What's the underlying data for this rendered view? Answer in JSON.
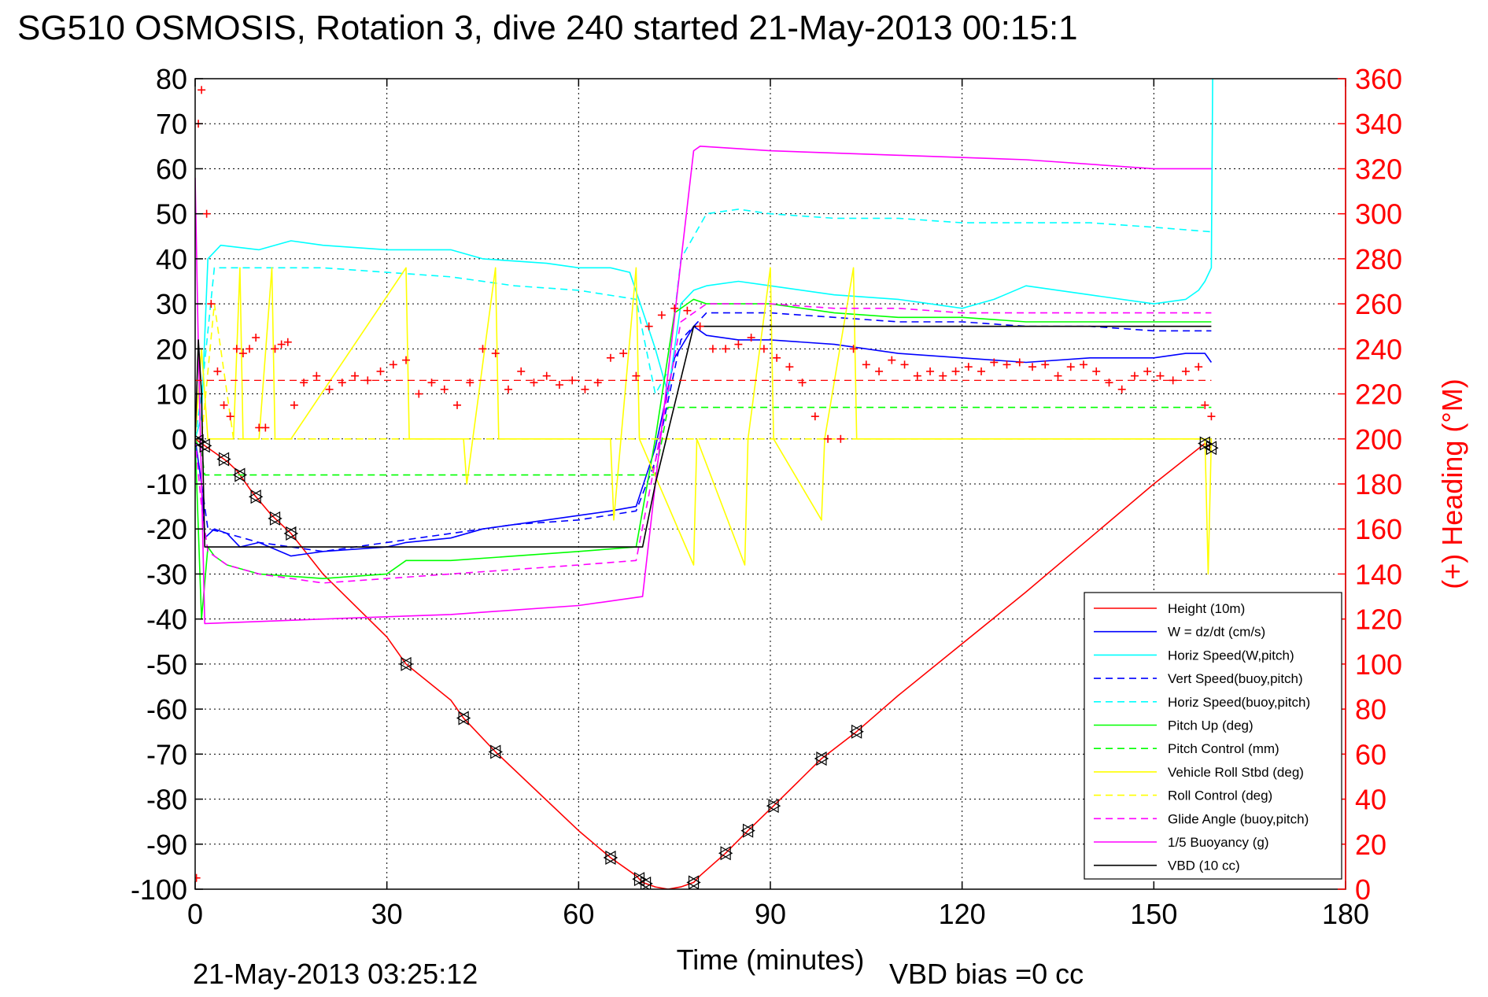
{
  "chart_data": {
    "type": "line",
    "title": "SG510 OSMOSIS, Rotation 3, dive 240 started 21-May-2013 00:15:1",
    "xlabel": "Time (minutes)",
    "ylabel_right": "(+) Heading (°M)",
    "footer_left": "21-May-2013 03:25:12",
    "footer_right": "VBD bias =0 cc",
    "xlim": [
      0,
      180
    ],
    "ylim": [
      -100,
      80
    ],
    "ylim_right": [
      0,
      360
    ],
    "x_ticks": [
      "0",
      "30",
      "60",
      "90",
      "120",
      "150",
      "180"
    ],
    "y_ticks": [
      "80",
      "70",
      "60",
      "50",
      "40",
      "30",
      "20",
      "10",
      "0",
      "-10",
      "-20",
      "-30",
      "-40",
      "-50",
      "-60",
      "-70",
      "-80",
      "-90",
      "-100"
    ],
    "y2_ticks": [
      "360",
      "340",
      "320",
      "300",
      "280",
      "260",
      "240",
      "220",
      "200",
      "180",
      "160",
      "140",
      "120",
      "100",
      "80",
      "60",
      "40",
      "20",
      "0"
    ],
    "grid": true,
    "legend_position": "bottom-right",
    "series": [
      {
        "name": "Height (10m)",
        "color": "#ff0000",
        "dash": "solid",
        "x": [
          0,
          1,
          3,
          5,
          6.5,
          9,
          12,
          15,
          20,
          30,
          33,
          40,
          42,
          47,
          60,
          65,
          69,
          70,
          72,
          74,
          76,
          78,
          79,
          83,
          86.5,
          90.5,
          98,
          103.5,
          110,
          130,
          150,
          158,
          159
        ],
        "y": [
          0,
          -1,
          -3,
          -5,
          -7,
          -12,
          -17,
          -21,
          -30,
          -44,
          -50,
          -58,
          -62,
          -69.5,
          -87,
          -93,
          -97,
          -98.5,
          -99.5,
          -100,
          -99.5,
          -98.5,
          -97,
          -92,
          -87,
          -81.5,
          -71,
          -65,
          -57,
          -34,
          -10,
          -1,
          -2
        ]
      },
      {
        "name": "W = dz/dt (cm/s)",
        "color": "#0000ff",
        "dash": "solid",
        "x": [
          0,
          1,
          1.5,
          3,
          5,
          7,
          10,
          15,
          20,
          30,
          33,
          40,
          45,
          55,
          60,
          65,
          69,
          72,
          75,
          78,
          80,
          85,
          90,
          100,
          105,
          110,
          120,
          130,
          140,
          150,
          155,
          158,
          159
        ],
        "y": [
          0,
          -10,
          -22,
          -20,
          -21,
          -24,
          -23,
          -26,
          -25,
          -24,
          -23,
          -22,
          -20,
          -18,
          -17,
          -16,
          -15,
          -2,
          18,
          25,
          23,
          22,
          22,
          21,
          20,
          19,
          18,
          17,
          18,
          18,
          19,
          19,
          17
        ]
      },
      {
        "name": "Horiz Speed(W,pitch)",
        "color": "#00ffff",
        "dash": "solid",
        "x": [
          0,
          1,
          2,
          4,
          10,
          15,
          20,
          30,
          40,
          45,
          55,
          60,
          65,
          68,
          72,
          74,
          76,
          78,
          80,
          85,
          90,
          100,
          110,
          115,
          120,
          125,
          130,
          140,
          150,
          155,
          157,
          158,
          159,
          159.2
        ],
        "y": [
          0,
          5,
          40,
          43,
          42,
          44,
          43,
          42,
          42,
          40,
          39,
          38,
          38,
          37,
          20,
          10,
          30,
          33,
          34,
          35,
          34,
          32,
          31,
          30,
          29,
          31,
          34,
          32,
          30,
          31,
          33,
          35,
          38,
          80
        ]
      },
      {
        "name": "Vert Speed(buoy,pitch)",
        "color": "#0000ff",
        "dash": "dashed",
        "x": [
          0,
          1,
          2,
          5,
          10,
          20,
          30,
          40,
          50,
          60,
          69,
          72,
          76,
          80,
          90,
          100,
          110,
          120,
          130,
          140,
          150,
          159
        ],
        "y": [
          0,
          -10,
          -20,
          -21,
          -23,
          -25,
          -23,
          -21,
          -19,
          -18,
          -16,
          -5,
          22,
          28,
          28,
          27,
          26,
          26,
          25,
          25,
          24,
          24
        ]
      },
      {
        "name": "Horiz Speed(buoy,pitch)",
        "color": "#00ffff",
        "dash": "dashed",
        "x": [
          0,
          1,
          3,
          10,
          20,
          30,
          40,
          50,
          60,
          69,
          72,
          74,
          76,
          80,
          85,
          90,
          100,
          110,
          120,
          130,
          140,
          150,
          159
        ],
        "y": [
          0,
          10,
          38,
          38,
          38,
          37,
          36,
          34,
          33,
          31,
          10,
          15,
          40,
          50,
          51,
          50,
          49,
          49,
          48,
          48,
          48,
          47,
          46
        ]
      },
      {
        "name": "Pitch Up (deg)",
        "color": "#00ff00",
        "dash": "solid",
        "x": [
          0,
          1,
          2,
          3,
          5,
          10,
          20,
          30,
          33,
          40,
          50,
          60,
          69,
          72,
          75,
          78,
          80,
          90,
          100,
          110,
          120,
          130,
          140,
          150,
          159
        ],
        "y": [
          0,
          -40,
          -24,
          -26,
          -28,
          -30,
          -31,
          -30,
          -27,
          -27,
          -26,
          -25,
          -24,
          0,
          28,
          31,
          30,
          30,
          28,
          27,
          27,
          26,
          26,
          26,
          26
        ]
      },
      {
        "name": "Pitch Control (mm)",
        "color": "#00ff00",
        "dash": "dashed",
        "x": [
          0,
          1,
          1.5,
          70,
          72,
          74,
          159
        ],
        "y": [
          0,
          -3,
          -8,
          -8,
          -8,
          7,
          7
        ]
      },
      {
        "name": "Vehicle Roll Stbd (deg)",
        "color": "#ffff00",
        "dash": "solid",
        "x": [
          0,
          1,
          2,
          6,
          7,
          7.5,
          10,
          12,
          12.5,
          15,
          33,
          33.5,
          42,
          42.5,
          47,
          47.5,
          65,
          65.5,
          69,
          69.5,
          78,
          78.5,
          86,
          86.5,
          90,
          90.5,
          98,
          98.5,
          103,
          103.5,
          158,
          158.5,
          159
        ],
        "y": [
          0,
          20,
          0,
          0,
          38,
          0,
          0,
          38,
          0,
          0,
          38,
          0,
          0,
          -10,
          38,
          0,
          0,
          -18,
          38,
          0,
          -28,
          0,
          -28,
          0,
          38,
          0,
          -18,
          0,
          38,
          0,
          0,
          -30,
          0
        ]
      },
      {
        "name": "Roll Control (deg)",
        "color": "#ffff00",
        "dash": "dashed",
        "x": [
          0,
          1,
          3,
          6,
          10,
          15,
          30,
          60,
          90,
          120,
          150,
          159
        ],
        "y": [
          0,
          0,
          30,
          0,
          0,
          0,
          0,
          0,
          0,
          0,
          0,
          0
        ]
      },
      {
        "name": "Glide Angle (buoy,pitch)",
        "color": "#ff00ff",
        "dash": "dashed",
        "x": [
          0,
          1,
          2,
          5,
          10,
          20,
          30,
          40,
          50,
          60,
          69,
          72,
          76,
          80,
          90,
          100,
          110,
          120,
          130,
          140,
          150,
          159
        ],
        "y": [
          0,
          -15,
          -25,
          -28,
          -30,
          -32,
          -31,
          -30,
          -29,
          -28,
          -27,
          -5,
          26,
          30,
          30,
          29,
          29,
          28,
          28,
          28,
          28,
          28
        ]
      },
      {
        "name": "1/5 Buoyancy (g)",
        "color": "#ff00ff",
        "dash": "solid",
        "x": [
          0,
          0.5,
          1,
          1.5,
          20,
          40,
          60,
          70,
          72,
          78,
          79,
          90,
          110,
          130,
          150,
          159
        ],
        "y": [
          58,
          20,
          -10,
          -41,
          -40,
          -39,
          -37,
          -35,
          -10,
          64,
          65,
          64,
          63,
          62,
          60,
          60
        ]
      },
      {
        "name": "VBD (10 cc)",
        "color": "#000000",
        "dash": "solid",
        "x": [
          0,
          0.5,
          1,
          1.5,
          60,
          70,
          72,
          78,
          79,
          90,
          120,
          150,
          159
        ],
        "y": [
          0,
          22,
          10,
          -24,
          -24,
          -24,
          -10,
          25,
          25,
          25,
          25,
          25,
          25
        ]
      }
    ],
    "heading_series": {
      "name": "(+) Heading (°M)",
      "color": "#ff0000",
      "marker": "+",
      "mean_heading": 226,
      "x": [
        0.2,
        0.5,
        1,
        1.8,
        2.5,
        3.5,
        4.5,
        5.5,
        6.5,
        7.5,
        8.5,
        9.5,
        10,
        11,
        12.5,
        13.5,
        14.5,
        15.5,
        17,
        19,
        21,
        23,
        25,
        27,
        29,
        31,
        33,
        35,
        37,
        39,
        41,
        43,
        45,
        47,
        49,
        51,
        53,
        55,
        57,
        59,
        61,
        63,
        65,
        67,
        69,
        71,
        73,
        75,
        77,
        79,
        81,
        83,
        85,
        87,
        89,
        91,
        93,
        95,
        97,
        99,
        101,
        103,
        105,
        107,
        109,
        111,
        113,
        115,
        117,
        119,
        121,
        123,
        125,
        127,
        129,
        131,
        133,
        135,
        137,
        139,
        141,
        143,
        145,
        147,
        149,
        151,
        153,
        155,
        157,
        158,
        159
      ],
      "y": [
        5,
        340,
        355,
        300,
        260,
        230,
        215,
        210,
        240,
        238,
        240,
        245,
        205,
        205,
        240,
        242,
        243,
        215,
        225,
        228,
        222,
        225,
        228,
        226,
        230,
        233,
        235,
        220,
        225,
        222,
        215,
        225,
        240,
        238,
        222,
        230,
        225,
        228,
        224,
        226,
        222,
        225,
        236,
        238,
        228,
        250,
        255,
        258,
        257,
        250,
        240,
        240,
        242,
        245,
        240,
        236,
        232,
        225,
        210,
        200,
        200,
        240,
        233,
        230,
        235,
        233,
        228,
        230,
        228,
        230,
        232,
        230,
        234,
        233,
        234,
        232,
        233,
        228,
        232,
        233,
        230,
        225,
        222,
        228,
        230,
        228,
        226,
        230,
        232,
        215,
        210
      ]
    },
    "time_markers_x": [
      0.5,
      1.5,
      4.5,
      7,
      9.5,
      12.5,
      15,
      33,
      42,
      47,
      65,
      69.5,
      70.5,
      78,
      83,
      86.5,
      90.5,
      98,
      103.5,
      158,
      159
    ]
  },
  "legend": {
    "entries": [
      {
        "label": "Height (10m)",
        "color": "#ff0000",
        "dash": "solid"
      },
      {
        "label": "W = dz/dt (cm/s)",
        "color": "#0000ff",
        "dash": "solid"
      },
      {
        "label": "Horiz Speed(W,pitch)",
        "color": "#00ffff",
        "dash": "solid"
      },
      {
        "label": "Vert Speed(buoy,pitch)",
        "color": "#0000ff",
        "dash": "dashed"
      },
      {
        "label": "Horiz Speed(buoy,pitch)",
        "color": "#00ffff",
        "dash": "dashed"
      },
      {
        "label": "Pitch Up (deg)",
        "color": "#00ff00",
        "dash": "solid"
      },
      {
        "label": "Pitch Control (mm)",
        "color": "#00ff00",
        "dash": "dashed"
      },
      {
        "label": "Vehicle Roll Stbd (deg)",
        "color": "#ffff00",
        "dash": "solid"
      },
      {
        "label": "Roll Control (deg)",
        "color": "#ffff00",
        "dash": "dashed"
      },
      {
        "label": "Glide Angle (buoy,pitch)",
        "color": "#ff00ff",
        "dash": "dashed"
      },
      {
        "label": "1/5 Buoyancy (g)",
        "color": "#ff00ff",
        "dash": "solid"
      },
      {
        "label": "VBD (10 cc)",
        "color": "#000000",
        "dash": "solid"
      }
    ]
  },
  "colors": {
    "left_axis": "#000000",
    "right_axis": "#ff0000",
    "grid": "#000000",
    "background": "#ffffff"
  }
}
